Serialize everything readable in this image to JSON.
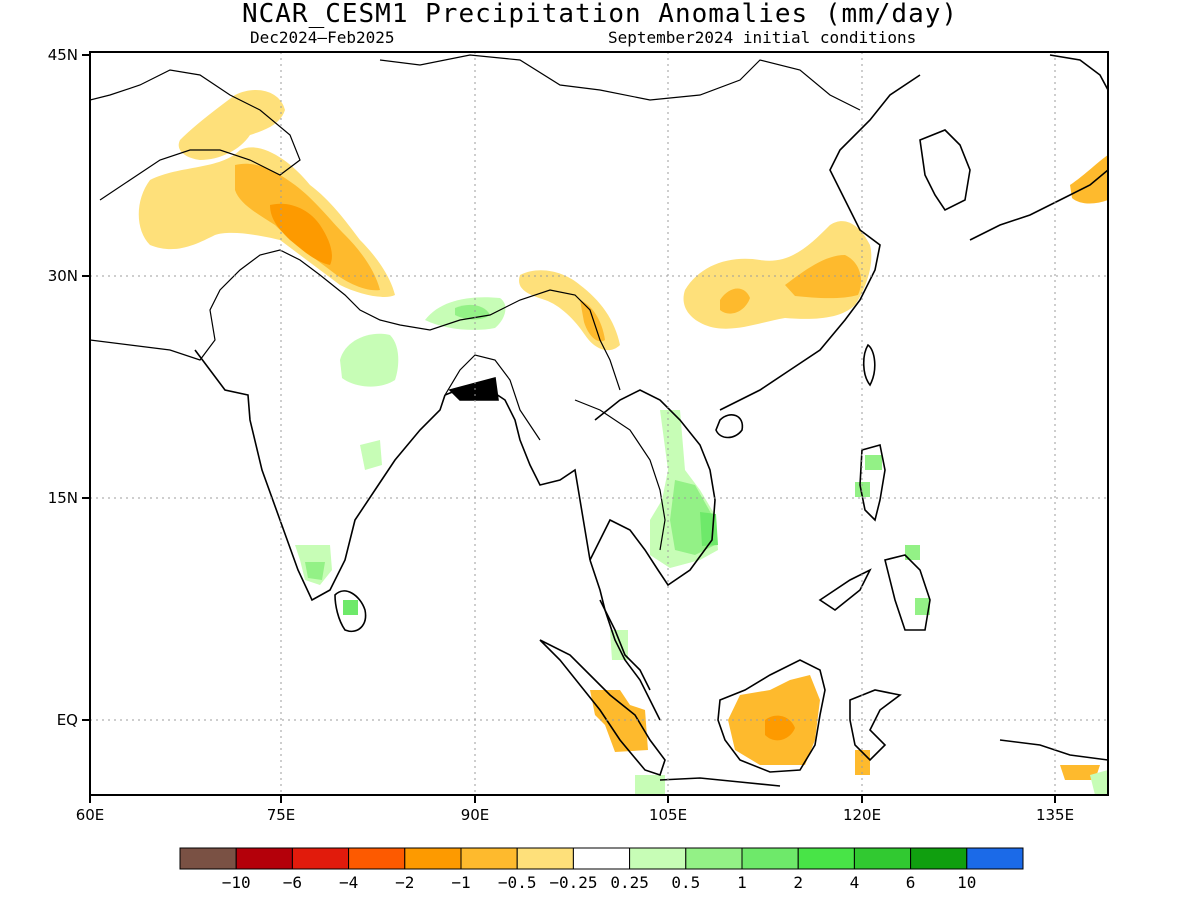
{
  "title": "NCAR_CESM1 Precipitation Anomalies (mm/day)",
  "period": "Dec2024–Feb2025",
  "init": "September2024 initial conditions",
  "lat_labels": [
    "45N",
    "30N",
    "15N",
    "EQ"
  ],
  "lon_labels": [
    "60E",
    "75E",
    "90E",
    "105E",
    "120E",
    "135E"
  ],
  "colorbar": {
    "labels": [
      "−10",
      "−6",
      "−4",
      "−2",
      "−1",
      "−0.5",
      "−0.25",
      "0.25",
      "0.5",
      "1",
      "2",
      "4",
      "6",
      "10"
    ],
    "colors": [
      "#7a5144",
      "#b4000a",
      "#e11b0c",
      "#fd5a00",
      "#fd9a00",
      "#feba2d",
      "#fee07a",
      "#ffffff",
      "#c7fdb6",
      "#93f186",
      "#6ee96a",
      "#48e447",
      "#31c931",
      "#109f0f",
      "#1b6ae8"
    ]
  },
  "map": {
    "lon_range": [
      60,
      140
    ],
    "lat_range": [
      -5,
      45
    ],
    "grid": true
  }
}
